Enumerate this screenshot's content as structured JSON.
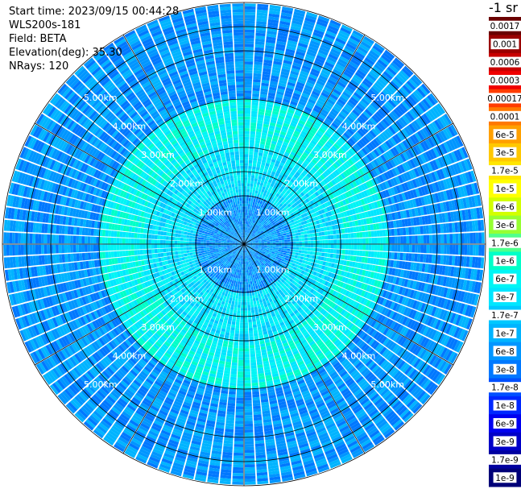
{
  "info": {
    "start_time": "Start time: 2023/09/15 00:44:28",
    "instrument": "WLS200s-181",
    "field": "Field: BETA",
    "elevation": "Elevation(deg): 35.30",
    "nrays": "NRays: 120"
  },
  "colorbar": {
    "unit": "-1 sr",
    "entries": [
      {
        "label": "0.0017",
        "color": "#6a0000"
      },
      {
        "label": "0.001",
        "color": "#9a0000"
      },
      {
        "label": "0.0006",
        "color": "#c80000"
      },
      {
        "label": "0.0003",
        "color": "#f00000"
      },
      {
        "label": "0.00017",
        "color": "#ff3c00"
      },
      {
        "label": "0.0001",
        "color": "#ff7800"
      },
      {
        "label": "6e-5",
        "color": "#ffa000"
      },
      {
        "label": "3e-5",
        "color": "#ffc800"
      },
      {
        "label": "1.7e-5",
        "color": "#ffe600"
      },
      {
        "label": "1e-5",
        "color": "#ffff00"
      },
      {
        "label": "6e-6",
        "color": "#d2ff00"
      },
      {
        "label": "3e-6",
        "color": "#96ff32"
      },
      {
        "label": "1.7e-6",
        "color": "#50ff8c"
      },
      {
        "label": "1e-6",
        "color": "#00ffc8"
      },
      {
        "label": "6e-7",
        "color": "#00f5f5"
      },
      {
        "label": "3e-7",
        "color": "#00e6ff"
      },
      {
        "label": "1.7e-7",
        "color": "#00c8ff"
      },
      {
        "label": "1e-7",
        "color": "#00b4ff"
      },
      {
        "label": "6e-8",
        "color": "#0096ff"
      },
      {
        "label": "3e-8",
        "color": "#0078ff"
      },
      {
        "label": "1.7e-8",
        "color": "#0050ff"
      },
      {
        "label": "1e-8",
        "color": "#0028ff"
      },
      {
        "label": "6e-9",
        "color": "#0000f0"
      },
      {
        "label": "3e-9",
        "color": "#0000c8"
      },
      {
        "label": "1.7e-9",
        "color": "#0000a0"
      },
      {
        "label": "1e-9",
        "color": "#000078"
      }
    ]
  },
  "chart_data": {
    "type": "heatmap",
    "projection": "polar (PPI)",
    "field": "BETA",
    "nrays": 120,
    "range_rings_km": [
      "1.00km",
      "2.00km",
      "3.00km",
      "4.00km",
      "5.00km"
    ],
    "max_range_km": 5.0,
    "spoke_angles_deg": [
      0,
      30,
      60,
      90,
      120,
      150,
      180,
      210,
      240,
      270,
      300,
      330
    ],
    "colors": {
      "ring": "#000000",
      "ray_gap": "#ffffff"
    },
    "description_by_range": [
      {
        "range_km": [
          0.0,
          1.0
        ],
        "typical": "6e-8"
      },
      {
        "range_km": [
          1.0,
          2.0
        ],
        "typical": "3e-7"
      },
      {
        "range_km": [
          2.0,
          3.0
        ],
        "typical": "6e-7"
      },
      {
        "range_km": [
          3.0,
          5.0
        ],
        "typical": "6e-8"
      }
    ]
  }
}
